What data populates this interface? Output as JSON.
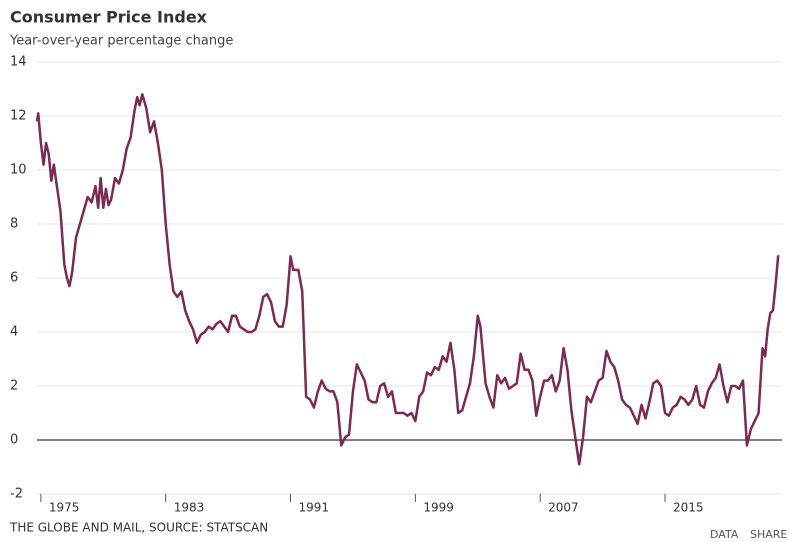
{
  "chart_data": {
    "type": "line",
    "title": "Consumer Price Index",
    "subtitle": "Year-over-year percentage change",
    "source": "THE GLOBE AND MAIL, SOURCE: STATSCAN",
    "links": [
      "DATA",
      "SHARE"
    ],
    "color": "#7b2a52",
    "grid": true,
    "xlim": [
      1974.75,
      2022.5
    ],
    "xticks": [
      1975,
      1983,
      1991,
      1999,
      2007,
      2015
    ],
    "ylim": [
      -2,
      14
    ],
    "yticks": [
      -2,
      0,
      2,
      4,
      6,
      8,
      10,
      12,
      14
    ],
    "x": [
      1974.75,
      1974.83,
      1975.0,
      1975.17,
      1975.33,
      1975.5,
      1975.67,
      1975.83,
      1976.0,
      1976.25,
      1976.5,
      1976.67,
      1976.83,
      1977.0,
      1977.25,
      1977.5,
      1977.75,
      1978.0,
      1978.25,
      1978.5,
      1978.67,
      1978.83,
      1979.0,
      1979.17,
      1979.33,
      1979.5,
      1979.75,
      1980.0,
      1980.25,
      1980.5,
      1980.75,
      1981.0,
      1981.17,
      1981.33,
      1981.5,
      1981.75,
      1982.0,
      1982.25,
      1982.5,
      1982.75,
      1983.0,
      1983.25,
      1983.5,
      1983.75,
      1984.0,
      1984.25,
      1984.5,
      1984.75,
      1985.0,
      1985.25,
      1985.5,
      1985.75,
      1986.0,
      1986.25,
      1986.5,
      1986.75,
      1987.0,
      1987.25,
      1987.5,
      1987.75,
      1988.0,
      1988.25,
      1988.5,
      1988.75,
      1989.0,
      1989.25,
      1989.5,
      1989.75,
      1990.0,
      1990.25,
      1990.5,
      1990.75,
      1991.0,
      1991.17,
      1991.5,
      1991.75,
      1992.0,
      1992.25,
      1992.5,
      1992.75,
      1993.0,
      1993.25,
      1993.5,
      1993.75,
      1994.0,
      1994.25,
      1994.5,
      1994.75,
      1995.0,
      1995.25,
      1995.5,
      1995.75,
      1996.0,
      1996.25,
      1996.5,
      1996.75,
      1997.0,
      1997.25,
      1997.5,
      1997.75,
      1998.0,
      1998.25,
      1998.5,
      1998.75,
      1999.0,
      1999.25,
      1999.5,
      1999.75,
      2000.0,
      2000.25,
      2000.5,
      2000.75,
      2001.0,
      2001.25,
      2001.5,
      2001.75,
      2002.0,
      2002.25,
      2002.5,
      2002.75,
      2003.0,
      2003.17,
      2003.5,
      2003.75,
      2004.0,
      2004.25,
      2004.5,
      2004.75,
      2005.0,
      2005.25,
      2005.5,
      2005.75,
      2006.0,
      2006.25,
      2006.5,
      2006.75,
      2007.0,
      2007.25,
      2007.5,
      2007.75,
      2008.0,
      2008.25,
      2008.5,
      2008.75,
      2009.0,
      2009.25,
      2009.5,
      2009.75,
      2010.0,
      2010.25,
      2010.5,
      2010.75,
      2011.0,
      2011.25,
      2011.5,
      2011.75,
      2012.0,
      2012.25,
      2012.5,
      2012.75,
      2013.0,
      2013.25,
      2013.5,
      2013.75,
      2014.0,
      2014.25,
      2014.5,
      2014.75,
      2015.0,
      2015.25,
      2015.5,
      2015.75,
      2016.0,
      2016.25,
      2016.5,
      2016.75,
      2017.0,
      2017.25,
      2017.5,
      2017.75,
      2018.0,
      2018.25,
      2018.5,
      2018.75,
      2019.0,
      2019.25,
      2019.5,
      2019.75,
      2020.0,
      2020.25,
      2020.5,
      2020.75,
      2021.0,
      2021.25,
      2021.42,
      2021.58,
      2021.75,
      2021.92,
      2022.08,
      2022.25,
      2022.33
    ],
    "values": [
      11.8,
      12.1,
      11.0,
      10.2,
      11.0,
      10.6,
      9.6,
      10.2,
      9.5,
      8.5,
      6.5,
      6.0,
      5.7,
      6.2,
      7.5,
      8.0,
      8.5,
      9.0,
      8.8,
      9.4,
      8.6,
      9.7,
      8.6,
      9.3,
      8.7,
      8.9,
      9.7,
      9.5,
      10.0,
      10.8,
      11.2,
      12.2,
      12.7,
      12.4,
      12.8,
      12.3,
      11.4,
      11.8,
      11.0,
      10.0,
      8.0,
      6.5,
      5.5,
      5.3,
      5.5,
      4.8,
      4.4,
      4.1,
      3.6,
      3.9,
      4.0,
      4.2,
      4.1,
      4.3,
      4.4,
      4.2,
      4.0,
      4.6,
      4.6,
      4.2,
      4.1,
      4.0,
      4.0,
      4.1,
      4.6,
      5.3,
      5.4,
      5.1,
      4.4,
      4.2,
      4.2,
      5.0,
      6.8,
      6.3,
      6.3,
      5.5,
      1.6,
      1.5,
      1.2,
      1.8,
      2.2,
      1.9,
      1.8,
      1.8,
      1.4,
      -0.2,
      0.1,
      0.2,
      1.8,
      2.8,
      2.5,
      2.2,
      1.5,
      1.4,
      1.4,
      2.0,
      2.1,
      1.6,
      1.8,
      1.0,
      1.0,
      1.0,
      0.9,
      1.0,
      0.7,
      1.6,
      1.8,
      2.5,
      2.4,
      2.7,
      2.6,
      3.1,
      2.9,
      3.6,
      2.6,
      1.0,
      1.1,
      1.6,
      2.1,
      3.1,
      4.6,
      4.2,
      2.1,
      1.6,
      1.2,
      2.4,
      2.1,
      2.3,
      1.9,
      2.0,
      2.1,
      3.2,
      2.6,
      2.6,
      2.2,
      0.9,
      1.6,
      2.2,
      2.2,
      2.4,
      1.8,
      2.2,
      3.4,
      2.6,
      1.1,
      0.1,
      -0.9,
      0.1,
      1.6,
      1.4,
      1.8,
      2.2,
      2.3,
      3.3,
      2.9,
      2.7,
      2.2,
      1.5,
      1.3,
      1.2,
      0.9,
      0.6,
      1.3,
      0.8,
      1.4,
      2.1,
      2.2,
      2.0,
      1.0,
      0.9,
      1.2,
      1.3,
      1.6,
      1.5,
      1.3,
      1.5,
      2.0,
      1.3,
      1.2,
      1.8,
      2.1,
      2.3,
      2.8,
      2.0,
      1.4,
      2.0,
      2.0,
      1.9,
      2.2,
      -0.2,
      0.4,
      0.7,
      1.0,
      3.4,
      3.1,
      4.1,
      4.7,
      4.8,
      5.7,
      6.8,
      6.8
    ]
  }
}
